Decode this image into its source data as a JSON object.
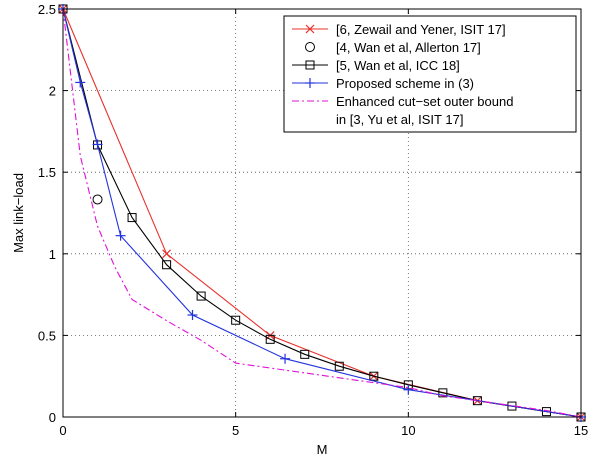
{
  "chart_data": {
    "type": "line",
    "xlabel": "M",
    "ylabel": "Max link−load",
    "xlim": [
      0,
      15
    ],
    "ylim": [
      0,
      2.5
    ],
    "xticks": [
      0,
      5,
      10,
      15
    ],
    "yticks": [
      0,
      0.5,
      1,
      1.5,
      2,
      2.5
    ],
    "xtick_labels": [
      "0",
      "5",
      "10",
      "15"
    ],
    "ytick_labels": [
      "0",
      "0.5",
      "1",
      "1.5",
      "2",
      "2.5"
    ],
    "grid": true,
    "legend_position": "top-right",
    "series": [
      {
        "name": "[6, Zewail and Yener, ISIT 17]",
        "color": "#e8302a",
        "marker": "x",
        "line": "solid",
        "x": [
          0,
          3,
          6,
          9,
          12,
          15
        ],
        "y": [
          2.5,
          1.0,
          0.5,
          0.25,
          0.1,
          0.0
        ]
      },
      {
        "name": "[4, Wan et al, Allerton 17]",
        "color": "#000000",
        "marker": "circle",
        "line": "none",
        "x": [
          1
        ],
        "y": [
          1.333
        ]
      },
      {
        "name": "[5, Wan et al, ICC 18]",
        "color": "#000000",
        "marker": "square",
        "line": "solid",
        "x": [
          0,
          1,
          2,
          3,
          4,
          5,
          6,
          7,
          8,
          9,
          10,
          11,
          12,
          13,
          14,
          15
        ],
        "y": [
          2.5,
          1.667,
          1.222,
          0.933,
          0.741,
          0.593,
          0.476,
          0.384,
          0.311,
          0.25,
          0.197,
          0.148,
          0.1,
          0.067,
          0.033,
          0.0
        ]
      },
      {
        "name": "Proposed scheme in (3)",
        "color": "#2233dd",
        "marker": "plus",
        "line": "solid",
        "x": [
          0,
          0.5,
          1,
          1.667,
          3.75,
          6.43,
          10,
          15
        ],
        "y": [
          2.5,
          2.05,
          1.67,
          1.111,
          0.625,
          0.357,
          0.167,
          0.0
        ]
      },
      {
        "name": "Enhanced cut−set outer bound in [3, Yu et al, ISIT 17]",
        "legend_lines": [
          "Enhanced cut−set outer bound",
          "in [3, Yu et al, ISIT 17]"
        ],
        "color": "#e010d8",
        "marker": "none",
        "line": "dashdot",
        "x": [
          0,
          0.5,
          1,
          1.5,
          2,
          3,
          4,
          5,
          6,
          7,
          8,
          9,
          10,
          11,
          12,
          13,
          14,
          15
        ],
        "y": [
          2.5,
          1.6,
          1.17,
          0.92,
          0.72,
          0.59,
          0.47,
          0.33,
          0.3,
          0.27,
          0.24,
          0.21,
          0.18,
          0.13,
          0.1,
          0.07,
          0.04,
          0.0
        ]
      }
    ]
  }
}
